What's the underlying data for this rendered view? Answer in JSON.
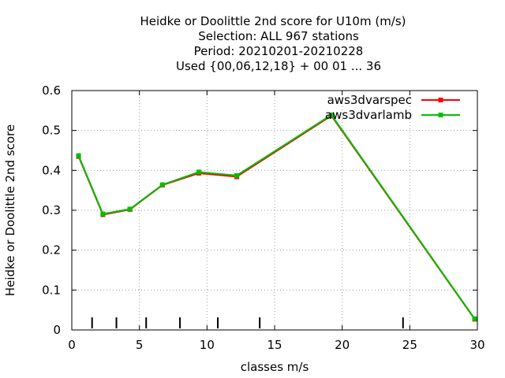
{
  "chart_data": {
    "type": "line",
    "title_lines": [
      "Heidke or Doolittle 2nd score  for U10m (m/s)",
      "Selection: ALL    967 stations",
      "Period: 20210201-20210228",
      "Used {00,06,12,18} + 00 01 ... 36"
    ],
    "xlabel": "classes m/s",
    "ylabel": "Heidke or Doolittle 2nd score",
    "xlim": [
      0,
      30
    ],
    "ylim": [
      0,
      0.6
    ],
    "x_ticks": [
      "0",
      "5",
      "10",
      "15",
      "20",
      "25",
      "30"
    ],
    "y_ticks": [
      "0",
      "0.1",
      "0.2",
      "0.3",
      "0.4",
      "0.5",
      "0.6"
    ],
    "grid": true,
    "legend_position": "top-right",
    "class_markers": [
      1.5,
      3.3,
      5.5,
      8,
      10.8,
      13.9,
      24.5
    ],
    "series": [
      {
        "name": "aws3dvarspec",
        "color": "#ff0000",
        "x": [
          0.5,
          2.3,
          4.3,
          6.7,
          9.4,
          12.2,
          19.2,
          29.8
        ],
        "y": [
          0.435,
          0.289,
          0.302,
          0.363,
          0.393,
          0.384,
          0.537,
          0.027
        ]
      },
      {
        "name": "aws3dvarlamb",
        "color": "#00c000",
        "x": [
          0.5,
          2.3,
          4.3,
          6.7,
          9.4,
          12.2,
          19.2,
          29.8
        ],
        "y": [
          0.437,
          0.291,
          0.303,
          0.364,
          0.396,
          0.387,
          0.539,
          0.028
        ]
      }
    ]
  }
}
